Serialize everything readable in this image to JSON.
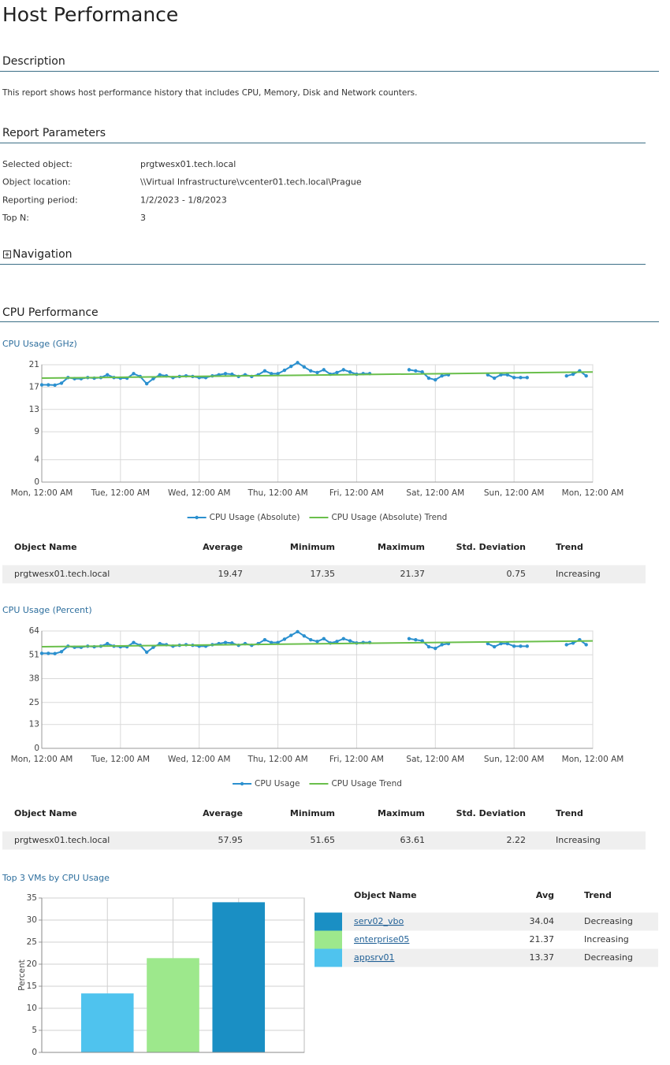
{
  "header": {
    "title": "Host Performance"
  },
  "description": {
    "heading": "Description",
    "text": "This report shows host performance history that includes CPU, Memory, Disk and Network counters."
  },
  "parameters": {
    "heading": "Report Parameters",
    "rows": [
      [
        "Selected object:",
        "prgtwesx01.tech.local"
      ],
      [
        "Object location:",
        "\\\\Virtual Infrastructure\\vcenter01.tech.local\\Prague"
      ],
      [
        "Reporting period:",
        "1/2/2023 - 1/8/2023"
      ],
      [
        "Top N:",
        "3"
      ]
    ]
  },
  "navigation": {
    "heading": "Navigation"
  },
  "cpu": {
    "heading": "CPU Performance"
  },
  "chart_data": [
    {
      "type": "line",
      "title": "CPU Usage (GHz)",
      "categories": [
        "Mon, 12:00 AM",
        null,
        null,
        null,
        null,
        null,
        null,
        null,
        null,
        null,
        null,
        null,
        "Tue, 12:00 AM",
        null,
        null,
        null,
        null,
        null,
        null,
        null,
        null,
        null,
        null,
        null,
        "Wed, 12:00 AM",
        null,
        null,
        null,
        null,
        null,
        null,
        null,
        null,
        null,
        null,
        null,
        "Thu, 12:00 AM",
        null,
        null,
        null,
        null,
        null,
        null,
        null,
        null,
        null,
        null,
        null,
        "Fri, 12:00 AM",
        null,
        null,
        null,
        null,
        null,
        null,
        null,
        null,
        null,
        null,
        null,
        "Sat, 12:00 AM",
        null,
        null,
        null,
        null,
        null,
        null,
        null,
        null,
        null,
        null,
        null,
        "Sun, 12:00 AM",
        null,
        null,
        null,
        null,
        null,
        null,
        null,
        null,
        null,
        null,
        null,
        "Mon, 12:00 AM"
      ],
      "series": [
        {
          "name": "CPU Usage (Absolute)",
          "color": "#2b90cf",
          "markers": true,
          "values": [
            17.4,
            17.4,
            17.35,
            17.7,
            18.7,
            18.5,
            18.5,
            18.7,
            18.6,
            18.7,
            19.2,
            18.7,
            18.6,
            18.6,
            19.4,
            18.9,
            17.6,
            18.5,
            19.2,
            19.0,
            18.7,
            18.9,
            19.0,
            18.9,
            18.7,
            18.7,
            19.0,
            19.2,
            19.4,
            19.3,
            18.9,
            19.2,
            18.9,
            19.2,
            19.9,
            19.4,
            19.4,
            20.0,
            20.7,
            21.37,
            20.6,
            19.9,
            19.6,
            20.1,
            19.3,
            19.6,
            20.1,
            19.7,
            19.3,
            19.4,
            19.4,
            null,
            null,
            null,
            null,
            null,
            20.1,
            19.9,
            19.7,
            18.6,
            18.3,
            19.0,
            19.2,
            null,
            null,
            null,
            null,
            null,
            19.2,
            18.6,
            19.2,
            19.2,
            18.7,
            18.7,
            18.7,
            null,
            null,
            null,
            null,
            null,
            19.0,
            19.3,
            19.9,
            19.0,
            null
          ]
        },
        {
          "name": "CPU Usage (Absolute) Trend",
          "color": "#6abf4b",
          "markers": false,
          "x": [
            0,
            84
          ],
          "values": [
            18.6,
            19.7
          ]
        }
      ],
      "ylim": [
        0,
        21
      ],
      "yticks": [
        0,
        4,
        9,
        13,
        17,
        21
      ],
      "grid": true,
      "legend": "bottom"
    },
    {
      "type": "line",
      "title": "CPU Usage (Percent)",
      "categories": [
        "Mon, 12:00 AM",
        null,
        null,
        null,
        null,
        null,
        null,
        null,
        null,
        null,
        null,
        null,
        "Tue, 12:00 AM",
        null,
        null,
        null,
        null,
        null,
        null,
        null,
        null,
        null,
        null,
        null,
        "Wed, 12:00 AM",
        null,
        null,
        null,
        null,
        null,
        null,
        null,
        null,
        null,
        null,
        null,
        "Thu, 12:00 AM",
        null,
        null,
        null,
        null,
        null,
        null,
        null,
        null,
        null,
        null,
        null,
        "Fri, 12:00 AM",
        null,
        null,
        null,
        null,
        null,
        null,
        null,
        null,
        null,
        null,
        null,
        "Sat, 12:00 AM",
        null,
        null,
        null,
        null,
        null,
        null,
        null,
        null,
        null,
        null,
        null,
        "Sun, 12:00 AM",
        null,
        null,
        null,
        null,
        null,
        null,
        null,
        null,
        null,
        null,
        null,
        "Mon, 12:00 AM"
      ],
      "series": [
        {
          "name": "CPU Usage",
          "color": "#2b90cf",
          "markers": true,
          "values": [
            51.8,
            51.8,
            51.65,
            52.7,
            55.7,
            55.1,
            55.1,
            55.7,
            55.4,
            55.7,
            57.1,
            55.7,
            55.4,
            55.4,
            57.7,
            56.2,
            52.4,
            55.1,
            57.1,
            56.5,
            55.7,
            56.2,
            56.5,
            56.2,
            55.7,
            55.7,
            56.5,
            57.1,
            57.7,
            57.4,
            56.2,
            57.1,
            56.2,
            57.1,
            59.2,
            57.7,
            57.7,
            59.5,
            61.6,
            63.61,
            61.3,
            59.2,
            58.3,
            59.8,
            57.4,
            58.3,
            59.8,
            58.6,
            57.4,
            57.7,
            57.7,
            null,
            null,
            null,
            null,
            null,
            59.8,
            59.2,
            58.6,
            55.4,
            54.5,
            56.5,
            57.1,
            null,
            null,
            null,
            null,
            null,
            57.1,
            55.4,
            57.1,
            57.1,
            55.7,
            55.7,
            55.7,
            null,
            null,
            null,
            null,
            null,
            56.5,
            57.4,
            59.2,
            56.5,
            null
          ]
        },
        {
          "name": "CPU Usage Trend",
          "color": "#6abf4b",
          "markers": false,
          "x": [
            0,
            84
          ],
          "values": [
            55.4,
            58.6
          ]
        }
      ],
      "ylim": [
        0,
        64
      ],
      "yticks": [
        0,
        13,
        25,
        38,
        51,
        64
      ],
      "grid": true,
      "legend": "bottom"
    },
    {
      "type": "bar",
      "title": "Top 3 VMs by CPU Usage",
      "y_label": "Percent",
      "categories": [
        null,
        null,
        null
      ],
      "values": [
        13.37,
        21.37,
        34.04
      ],
      "colors": [
        "#4fc3ee",
        "#9de88c",
        "#1a8fc4"
      ],
      "ylim": [
        0,
        35
      ],
      "yticks": [
        0,
        5,
        10,
        15,
        20,
        25,
        30,
        35
      ],
      "grid": true
    }
  ],
  "tables": [
    {
      "columns": [
        "Object Name",
        "Average",
        "Minimum",
        "Maximum",
        "Std. Deviation",
        "Trend"
      ],
      "rows": [
        [
          "prgtwesx01.tech.local",
          19.47,
          17.35,
          21.37,
          0.75,
          "Increasing"
        ]
      ]
    },
    {
      "columns": [
        "Object Name",
        "Average",
        "Minimum",
        "Maximum",
        "Std. Deviation",
        "Trend"
      ],
      "rows": [
        [
          "prgtwesx01.tech.local",
          57.95,
          51.65,
          63.61,
          2.22,
          "Increasing"
        ]
      ]
    },
    {
      "columns": [
        "Object Name",
        "Avg",
        "Trend"
      ],
      "colors": [
        "#1a8fc4",
        "#9de88c",
        "#4fc3ee"
      ],
      "rows": [
        [
          "serv02_vbo",
          34.04,
          "Decreasing"
        ],
        [
          "enterprise05",
          21.37,
          "Increasing"
        ],
        [
          "appsrv01",
          13.37,
          "Decreasing"
        ]
      ]
    }
  ]
}
